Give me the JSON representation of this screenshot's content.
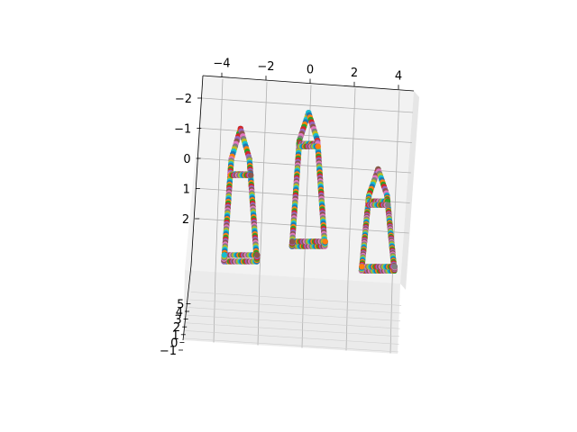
{
  "chart_data": {
    "type": "scatter",
    "projection": "3d",
    "title": "",
    "xlabel": "",
    "ylabel": "",
    "zlabel": "",
    "xlim": [
      -5,
      5
    ],
    "ylim": [
      -1,
      6
    ],
    "zlim": [
      -3,
      3
    ],
    "z_inverted": true,
    "grid": true,
    "legend": "none",
    "x_ticks": [
      {
        "value": -4,
        "label": "−4"
      },
      {
        "value": -2,
        "label": "−2"
      },
      {
        "value": 0,
        "label": "0"
      },
      {
        "value": 2,
        "label": "2"
      },
      {
        "value": 4,
        "label": "4"
      }
    ],
    "y_ticks": [
      {
        "value": -1,
        "label": "−1"
      },
      {
        "value": 0,
        "label": "0"
      },
      {
        "value": 1,
        "label": "1"
      },
      {
        "value": 2,
        "label": "2"
      },
      {
        "value": 3,
        "label": "3"
      },
      {
        "value": 4,
        "label": "4"
      },
      {
        "value": 5,
        "label": "5"
      }
    ],
    "z_ticks": [
      {
        "value": -2,
        "label": "−2"
      },
      {
        "value": -1,
        "label": "−1"
      },
      {
        "value": 0,
        "label": "0"
      },
      {
        "value": 1,
        "label": "1"
      },
      {
        "value": 2,
        "label": "2"
      }
    ],
    "series_colors": [
      "#1f77b4",
      "#ff7f0e",
      "#2ca02c",
      "#d62728",
      "#9467bd",
      "#8c564b",
      "#e377c2",
      "#7f7f7f",
      "#bcbd22",
      "#17becf"
    ],
    "shapes": [
      {
        "name": "",
        "center_x": -3.1,
        "base_width": 1.5,
        "z_apex": -1.5,
        "z_shoulder": -0.6,
        "z_base": 2.8,
        "y_front": 0.5,
        "y_back": 1.3,
        "crossbar_z": [
          -0.1
        ]
      },
      {
        "name": "",
        "center_x": 0.0,
        "base_width": 1.5,
        "z_apex": -1.95,
        "z_shoulder": -1.1,
        "z_base": 2.4,
        "y_front": 0.9,
        "y_back": 1.5,
        "crossbar_z": [
          -1.0
        ]
      },
      {
        "name": "",
        "center_x": 3.2,
        "base_width": 1.5,
        "z_apex": -0.3,
        "z_shoulder": 0.5,
        "z_base": 3.0,
        "y_front": 0.1,
        "y_back": 0.6,
        "crossbar_z": [
          0.7
        ]
      }
    ]
  }
}
